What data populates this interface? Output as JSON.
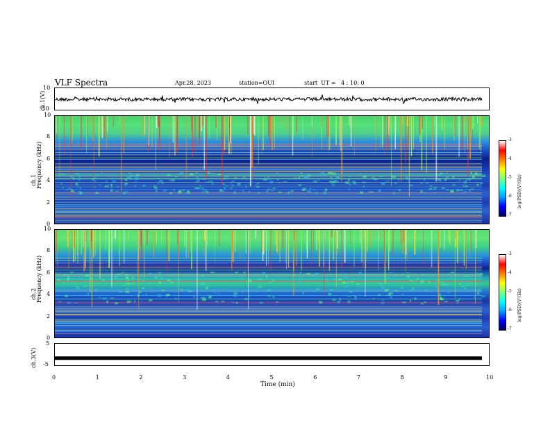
{
  "header": {
    "title": "VLF Spectra",
    "date": "Apr.28, 2023",
    "station": "station=OUI",
    "start_ut": "start  UT =   4 : 10: 0"
  },
  "chart_data": [
    {
      "type": "line",
      "panel": "ch1-waveform",
      "ylabel": "ch.1(V)",
      "yticks": [
        "10",
        "-10"
      ],
      "ylim": [
        -10,
        10
      ],
      "xlim": [
        0,
        10
      ]
    },
    {
      "type": "heatmap",
      "panel": "ch1-spectrogram",
      "ylabel_line1": "ch.1",
      "ylabel_line2": "Frequency (kHz)",
      "yticks": [
        "0",
        "2",
        "4",
        "6",
        "8",
        "10"
      ],
      "ylim": [
        0,
        10
      ],
      "xlim": [
        0,
        10
      ],
      "colorbar": {
        "label": "log(PSD)(V²/Hz)",
        "ticks": [
          "-3",
          "-4",
          "-5",
          "-6",
          "-7"
        ],
        "range": [
          -7,
          -3
        ]
      }
    },
    {
      "type": "heatmap",
      "panel": "ch2-spectrogram",
      "ylabel_line1": "ch.2",
      "ylabel_line2": "Frequency (kHz)",
      "yticks": [
        "0",
        "2",
        "4",
        "6",
        "8",
        "10"
      ],
      "ylim": [
        0,
        10
      ],
      "xlim": [
        0,
        10
      ],
      "colorbar": {
        "label": "log(PSD)(V²/Hz)",
        "ticks": [
          "-3",
          "-4",
          "-5",
          "-6",
          "-7"
        ],
        "range": [
          -7,
          -3
        ]
      }
    },
    {
      "type": "line",
      "panel": "ch3-waveform",
      "ylabel": "ch.3(V)",
      "yticks": [
        "5",
        "-5"
      ],
      "ylim": [
        -5,
        5
      ],
      "xlim": [
        0,
        10
      ],
      "xlabel": "Time (min)",
      "xticks": [
        "0",
        "1",
        "2",
        "3",
        "4",
        "5",
        "6",
        "7",
        "8",
        "9",
        "10"
      ],
      "level": -1.3
    }
  ],
  "colorscale": [
    "#00007f",
    "#0000ff",
    "#00a0ff",
    "#00ffff",
    "#7fff7f",
    "#ffff00",
    "#ff8000",
    "#ff0000",
    "#ffffff"
  ]
}
